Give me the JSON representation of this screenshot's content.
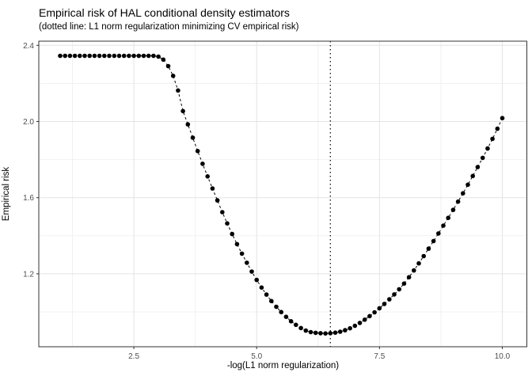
{
  "title": "Empirical risk of HAL conditional density estimators",
  "subtitle": "(dotted line: L1 norm regularization minimizing CV empirical risk)",
  "colors": {
    "background": "#ffffff",
    "point": "#000000",
    "line": "#000000",
    "vline": "#000000",
    "grid_major": "#e3e3e3",
    "grid_minor": "#f1f1f1",
    "panel_border": "#333333",
    "tick": "#333333",
    "tick_label": "#4d4d4d",
    "text": "#000000"
  },
  "chart_data": {
    "type": "scatter",
    "title": "Empirical risk of HAL conditional density estimators",
    "subtitle": "(dotted line: L1 norm regularization minimizing CV empirical risk)",
    "xlabel": "-log(L1 norm regularization)",
    "ylabel": "Empirical risk",
    "xlim": [
      0.565,
      10.5
    ],
    "ylim": [
      0.817,
      2.422
    ],
    "x_ticks": [
      2.5,
      5.0,
      7.5,
      10.0
    ],
    "x_tick_labels": [
      "2.5",
      "5.0",
      "7.5",
      "10.0"
    ],
    "y_ticks": [
      1.2,
      1.6,
      2.0,
      2.4
    ],
    "y_tick_labels": [
      "1.2",
      "1.6",
      "2.0",
      "2.4"
    ],
    "x_minor_ticks": [
      1.25,
      3.75,
      6.25,
      8.75
    ],
    "y_minor_ticks": [
      1.0,
      1.4,
      1.8,
      2.2
    ],
    "grid": true,
    "legend": false,
    "vline_x": 6.5,
    "vline_style": "dotted",
    "line_style": "dashed",
    "point_style": "filled-circle",
    "series": [
      {
        "name": "empirical-risk",
        "x": [
          1.0,
          1.1,
          1.2,
          1.3,
          1.4,
          1.5,
          1.6,
          1.7,
          1.8,
          1.9,
          2.0,
          2.1,
          2.2,
          2.3,
          2.4,
          2.5,
          2.6,
          2.7,
          2.8,
          2.9,
          3.0,
          3.1,
          3.2,
          3.3,
          3.4,
          3.5,
          3.6,
          3.7,
          3.8,
          3.9,
          4.0,
          4.1,
          4.2,
          4.3,
          4.4,
          4.5,
          4.6,
          4.7,
          4.8,
          4.9,
          5.0,
          5.1,
          5.2,
          5.3,
          5.4,
          5.5,
          5.6,
          5.7,
          5.8,
          5.9,
          6.0,
          6.1,
          6.2,
          6.3,
          6.4,
          6.5,
          6.6,
          6.7,
          6.8,
          6.9,
          7.0,
          7.1,
          7.2,
          7.3,
          7.4,
          7.5,
          7.6,
          7.7,
          7.8,
          7.9,
          8.0,
          8.1,
          8.2,
          8.3,
          8.4,
          8.5,
          8.6,
          8.7,
          8.8,
          8.9,
          9.0,
          9.1,
          9.2,
          9.3,
          9.4,
          9.5,
          9.6,
          9.7,
          9.8,
          9.9,
          10.0
        ],
        "y": [
          2.345,
          2.345,
          2.345,
          2.345,
          2.345,
          2.345,
          2.345,
          2.345,
          2.345,
          2.345,
          2.345,
          2.345,
          2.345,
          2.345,
          2.345,
          2.345,
          2.345,
          2.345,
          2.345,
          2.345,
          2.341,
          2.325,
          2.291,
          2.24,
          2.163,
          2.055,
          1.985,
          1.915,
          1.845,
          1.778,
          1.712,
          1.648,
          1.586,
          1.524,
          1.465,
          1.409,
          1.356,
          1.306,
          1.258,
          1.212,
          1.168,
          1.128,
          1.091,
          1.057,
          1.027,
          0.999,
          0.974,
          0.951,
          0.932,
          0.915,
          0.902,
          0.894,
          0.89,
          0.888,
          0.887,
          0.888,
          0.891,
          0.896,
          0.904,
          0.914,
          0.927,
          0.942,
          0.959,
          0.978,
          0.998,
          1.019,
          1.042,
          1.066,
          1.092,
          1.119,
          1.149,
          1.182,
          1.218,
          1.255,
          1.293,
          1.332,
          1.372,
          1.412,
          1.453,
          1.494,
          1.536,
          1.579,
          1.623,
          1.668,
          1.714,
          1.761,
          1.809,
          1.858,
          1.909,
          1.962,
          2.018
        ]
      }
    ]
  }
}
